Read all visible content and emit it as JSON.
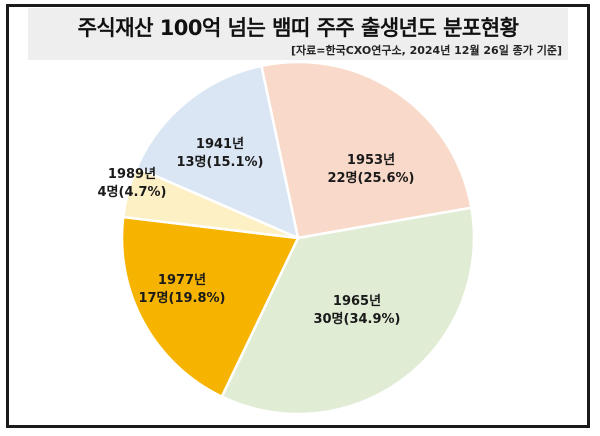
{
  "chart_data": {
    "type": "pie",
    "title": "주식재산 100억 넘는 뱀띠 주주 출생년도 분포현황",
    "subtitle": "[자료=한국CXO연구소, 2024년 12월 26일 종가 기준]",
    "slices": [
      {
        "label": "1953년",
        "value_text": "22명(25.6%)",
        "count": 22,
        "percent": 25.6,
        "color": "#f9d9c9"
      },
      {
        "label": "1965년",
        "value_text": "30명(34.9%)",
        "count": 30,
        "percent": 34.9,
        "color": "#e1ecd5"
      },
      {
        "label": "1977년",
        "value_text": "17명(19.8%)",
        "count": 17,
        "percent": 19.8,
        "color": "#f6b400"
      },
      {
        "label": "1989년",
        "value_text": "4명(4.7%)",
        "count": 4,
        "percent": 4.7,
        "color": "#fdf0c4"
      },
      {
        "label": "1941년",
        "value_text": "13명(15.1%)",
        "count": 13,
        "percent": 15.1,
        "color": "#dae6f4"
      }
    ]
  }
}
